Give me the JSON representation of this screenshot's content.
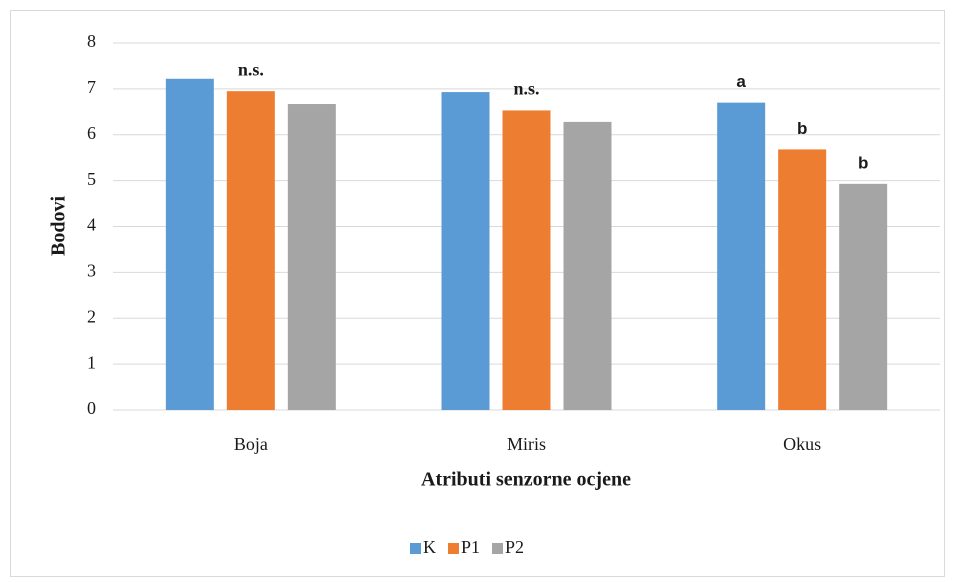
{
  "chart_data": {
    "type": "bar",
    "y_label": "Bodovi",
    "x_label": "Atributi senzorne ocjene",
    "categories": [
      "Boja",
      "Miris",
      "Okus"
    ],
    "series": [
      {
        "name": "K",
        "color": "#5b9bd5",
        "values": [
          7.22,
          6.93,
          6.7
        ]
      },
      {
        "name": "P1",
        "color": "#ed7d31",
        "values": [
          6.95,
          6.53,
          5.68
        ]
      },
      {
        "name": "P2",
        "color": "#a5a5a5",
        "values": [
          6.67,
          6.28,
          4.93
        ]
      }
    ],
    "annotations": [
      "n.s.",
      "n.s.",
      "a",
      "b",
      "b"
    ],
    "ylim": [
      0,
      8
    ],
    "yticks": [
      0,
      1,
      2,
      3,
      4,
      5,
      6,
      7,
      8
    ],
    "grid": true,
    "legend": "bottom"
  }
}
